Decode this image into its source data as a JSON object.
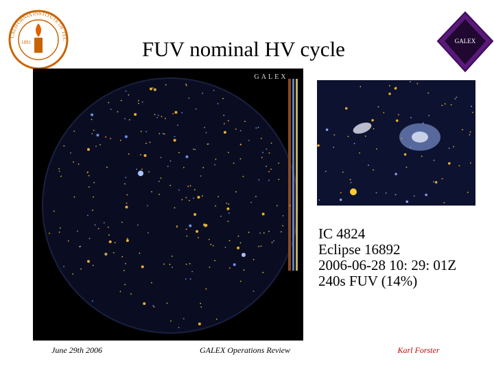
{
  "slide": {
    "title": "FUV nominal HV cycle",
    "logo_left": {
      "name": "CALIFORNIA INSTITUTE OF TECHNOLOGY",
      "year": "1891"
    },
    "logo_right": "GALEX",
    "image_header": "GALEX",
    "caption": [
      "IC 4824",
      "Eclipse 16892",
      "2006-06-28  10: 29: 01Z",
      "240s FUV (14%)"
    ],
    "footer": {
      "date": "June 29th 2006",
      "center": "GALEX Operations Review",
      "author": "Karl Forster"
    }
  }
}
